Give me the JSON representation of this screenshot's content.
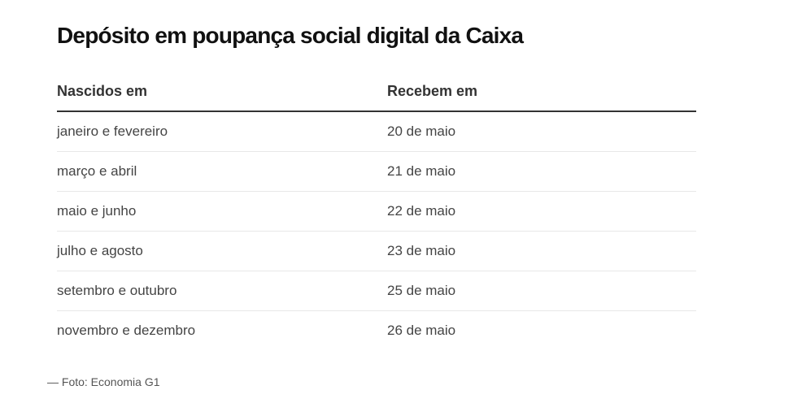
{
  "title": "Depósito em poupança social digital da Caixa",
  "table": {
    "headers": [
      "Nascidos em",
      "Recebem em"
    ],
    "rows": [
      [
        "janeiro e fevereiro",
        "20 de maio"
      ],
      [
        "março e abril",
        "21 de maio"
      ],
      [
        "maio e junho",
        "22 de maio"
      ],
      [
        "julho e agosto",
        "23 de maio"
      ],
      [
        "setembro e outubro",
        "25 de maio"
      ],
      [
        "novembro e dezembro",
        "26 de maio"
      ]
    ]
  },
  "caption": "— Foto: Economia G1"
}
